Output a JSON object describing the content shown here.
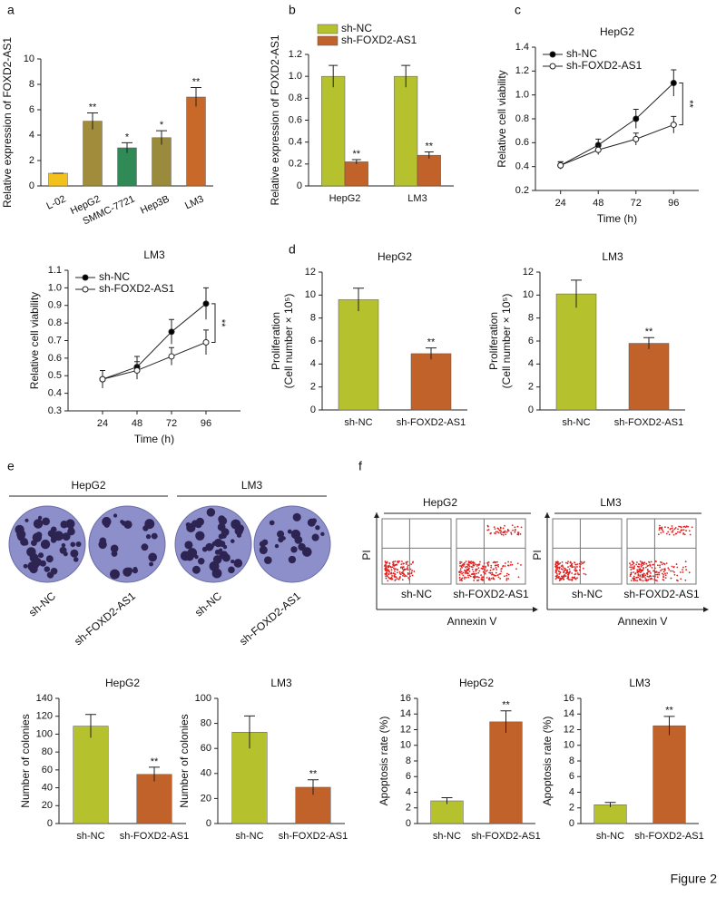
{
  "panel_labels": [
    "a",
    "b",
    "c",
    "d",
    "e",
    "f"
  ],
  "figure_label": "Figure 2",
  "colony_panels": [
    {
      "title": "HepG2",
      "labels": [
        "sh-NC",
        "sh-FOXD2-AS1"
      ]
    },
    {
      "title": "LM3",
      "labels": [
        "sh-NC",
        "sh-FOXD2-AS1"
      ]
    }
  ],
  "flow_panels": [
    {
      "title": "HepG2",
      "ylabel": "PI",
      "xlabel": "Annexin V",
      "labels": [
        "sh-NC",
        "sh-FOXD2-AS1"
      ]
    },
    {
      "title": "LM3",
      "ylabel": "PI",
      "xlabel": "Annexin V",
      "labels": [
        "sh-NC",
        "sh-FOXD2-AS1"
      ]
    }
  ],
  "chart_data": [
    {
      "type": "bar",
      "ylabel": [
        "Relative expression of FOXD2-AS1"
      ],
      "categories": [
        "L-02",
        "HepG2",
        "SMMC-7721",
        "Hep3B",
        "LM3"
      ],
      "values": [
        1,
        5.1,
        3.0,
        3.8,
        7.0
      ],
      "errors": [
        0,
        0.65,
        0.4,
        0.55,
        0.75
      ],
      "value_annotations": [
        null,
        "**",
        "*",
        "*",
        "**"
      ],
      "colors": [
        "#f2c21b",
        "#a08c3a",
        "#2f8a55",
        "#9a8a3c",
        "#c8692a"
      ],
      "ylim": [
        0,
        10
      ],
      "yticks": [
        0,
        2,
        4,
        6,
        8,
        10
      ]
    },
    {
      "type": "bar",
      "ylabel": [
        "Relative expression of FOXD2-AS1"
      ],
      "legend": "above",
      "categories": [
        "HepG2",
        "LM3"
      ],
      "series": [
        {
          "name": "sh-NC",
          "color": "#b5c22e",
          "values": [
            1.0,
            1.0
          ],
          "errors": [
            0.1,
            0.1
          ],
          "value_annotations": [
            null,
            null
          ]
        },
        {
          "name": "sh-FOXD2-AS1",
          "color": "#c0622a",
          "values": [
            0.22,
            0.28
          ],
          "errors": [
            0.02,
            0.03
          ],
          "value_annotations": [
            "**",
            "**"
          ]
        }
      ],
      "ylim": [
        0,
        1.2
      ],
      "yticks": [
        0,
        0.2,
        0.4,
        0.6,
        0.8,
        {
          "value": 1,
          "label": "1.0"
        },
        1.2
      ]
    },
    {
      "type": "line",
      "title": "HepG2",
      "xlabel": "Time (h)",
      "ylabel": [
        "Relative cell viability"
      ],
      "legend": "upper left",
      "annotation": "**",
      "x": [
        24,
        48,
        72,
        96
      ],
      "series": [
        {
          "name": "sh-NC",
          "color": "#000000",
          "values": [
            0.41,
            0.58,
            0.8,
            1.1
          ],
          "errors": [
            0.03,
            0.05,
            0.08,
            0.11
          ]
        },
        {
          "name": "sh-FOXD2-AS1",
          "color": "#ffffff",
          "values": [
            0.41,
            0.54,
            0.63,
            0.75
          ],
          "errors": [
            0.03,
            0.04,
            0.05,
            0.07
          ]
        }
      ],
      "xlim": [
        8,
        112
      ],
      "xticks": [
        24,
        48,
        72,
        96
      ],
      "ylim": [
        0.2,
        1.4
      ],
      "yticks": [
        0.2,
        0.4,
        0.6,
        0.8,
        {
          "value": 1,
          "label": "1.0"
        },
        1.2,
        1.4
      ]
    },
    {
      "type": "line",
      "title": "LM3",
      "xlabel": "Time (h)",
      "ylabel": [
        "Relative cell viability"
      ],
      "legend": "upper left",
      "annotation": "**",
      "x": [
        24,
        48,
        72,
        96
      ],
      "series": [
        {
          "name": "sh-NC",
          "color": "#000000",
          "values": [
            0.48,
            0.55,
            0.75,
            0.91
          ],
          "errors": [
            0.05,
            0.06,
            0.07,
            0.09
          ]
        },
        {
          "name": "sh-FOXD2-AS1",
          "color": "#ffffff",
          "values": [
            0.48,
            0.53,
            0.61,
            0.69
          ],
          "errors": [
            0.05,
            0.05,
            0.05,
            0.07
          ]
        }
      ],
      "xlim": [
        0,
        120
      ],
      "xticks": [
        24,
        48,
        72,
        96
      ],
      "ylim": [
        0.3,
        1.1
      ],
      "yticks": [
        0.3,
        0.4,
        0.5,
        0.6,
        0.7,
        0.8,
        0.9,
        {
          "value": 1,
          "label": "1.0"
        },
        1.1
      ]
    },
    {
      "type": "bar",
      "title": "HepG2",
      "ylabel": [
        "Proliferation",
        "(Cell number × 10⁵)"
      ],
      "categories": [
        "sh-NC",
        "sh-FOXD2-AS1"
      ],
      "values": [
        9.6,
        4.9
      ],
      "errors": [
        1.0,
        0.5
      ],
      "value_annotations": [
        null,
        "**"
      ],
      "colors": [
        "#b5c22e",
        "#c0622a"
      ],
      "ylim": [
        0,
        12
      ],
      "yticks": [
        0,
        2,
        4,
        6,
        8,
        10,
        12
      ]
    },
    {
      "type": "bar",
      "title": "LM3",
      "ylabel": [
        "Proliferation",
        "(Cell number × 10⁵)"
      ],
      "categories": [
        "sh-NC",
        "sh-FOXD2-AS1"
      ],
      "values": [
        10.1,
        5.8
      ],
      "errors": [
        1.2,
        0.5
      ],
      "value_annotations": [
        null,
        "**"
      ],
      "colors": [
        "#b5c22e",
        "#c0622a"
      ],
      "ylim": [
        0,
        12
      ],
      "yticks": [
        0,
        2,
        4,
        6,
        8,
        10,
        12
      ]
    },
    {
      "type": "bar",
      "title": "HepG2",
      "ylabel": [
        "Number of colonies"
      ],
      "categories": [
        "sh-NC",
        "sh-FOXD2-AS1"
      ],
      "values": [
        109,
        55
      ],
      "errors": [
        13,
        8
      ],
      "value_annotations": [
        null,
        "**"
      ],
      "colors": [
        "#b5c22e",
        "#c0622a"
      ],
      "ylim": [
        0,
        140
      ],
      "yticks": [
        0,
        20,
        40,
        60,
        80,
        100,
        120,
        140
      ]
    },
    {
      "type": "bar",
      "title": "LM3",
      "ylabel": [
        "Number of colonies"
      ],
      "categories": [
        "sh-NC",
        "sh-FOXD2-AS1"
      ],
      "values": [
        73,
        29
      ],
      "errors": [
        13,
        6
      ],
      "value_annotations": [
        null,
        "**"
      ],
      "colors": [
        "#b5c22e",
        "#c0622a"
      ],
      "ylim": [
        0,
        100
      ],
      "yticks": [
        0,
        20,
        40,
        60,
        80,
        100
      ]
    },
    {
      "type": "bar",
      "title": "HepG2",
      "ylabel": [
        "Apoptosis rate (%)"
      ],
      "categories": [
        "sh-NC",
        "sh-FOXD2-AS1"
      ],
      "values": [
        2.9,
        13.0
      ],
      "errors": [
        0.4,
        1.4
      ],
      "value_annotations": [
        null,
        "**"
      ],
      "colors": [
        "#b5c22e",
        "#c0622a"
      ],
      "ylim": [
        0,
        16
      ],
      "yticks": [
        0,
        2,
        4,
        6,
        8,
        10,
        12,
        14,
        16
      ]
    },
    {
      "type": "bar",
      "title": "LM3",
      "ylabel": [
        "Apoptosis rate (%)"
      ],
      "categories": [
        "sh-NC",
        "sh-FOXD2-AS1"
      ],
      "values": [
        2.4,
        12.5
      ],
      "errors": [
        0.3,
        1.2
      ],
      "value_annotations": [
        null,
        "**"
      ],
      "colors": [
        "#b5c22e",
        "#c0622a"
      ],
      "ylim": [
        0,
        16
      ],
      "yticks": [
        0,
        2,
        4,
        6,
        8,
        10,
        12,
        14,
        16
      ]
    }
  ]
}
